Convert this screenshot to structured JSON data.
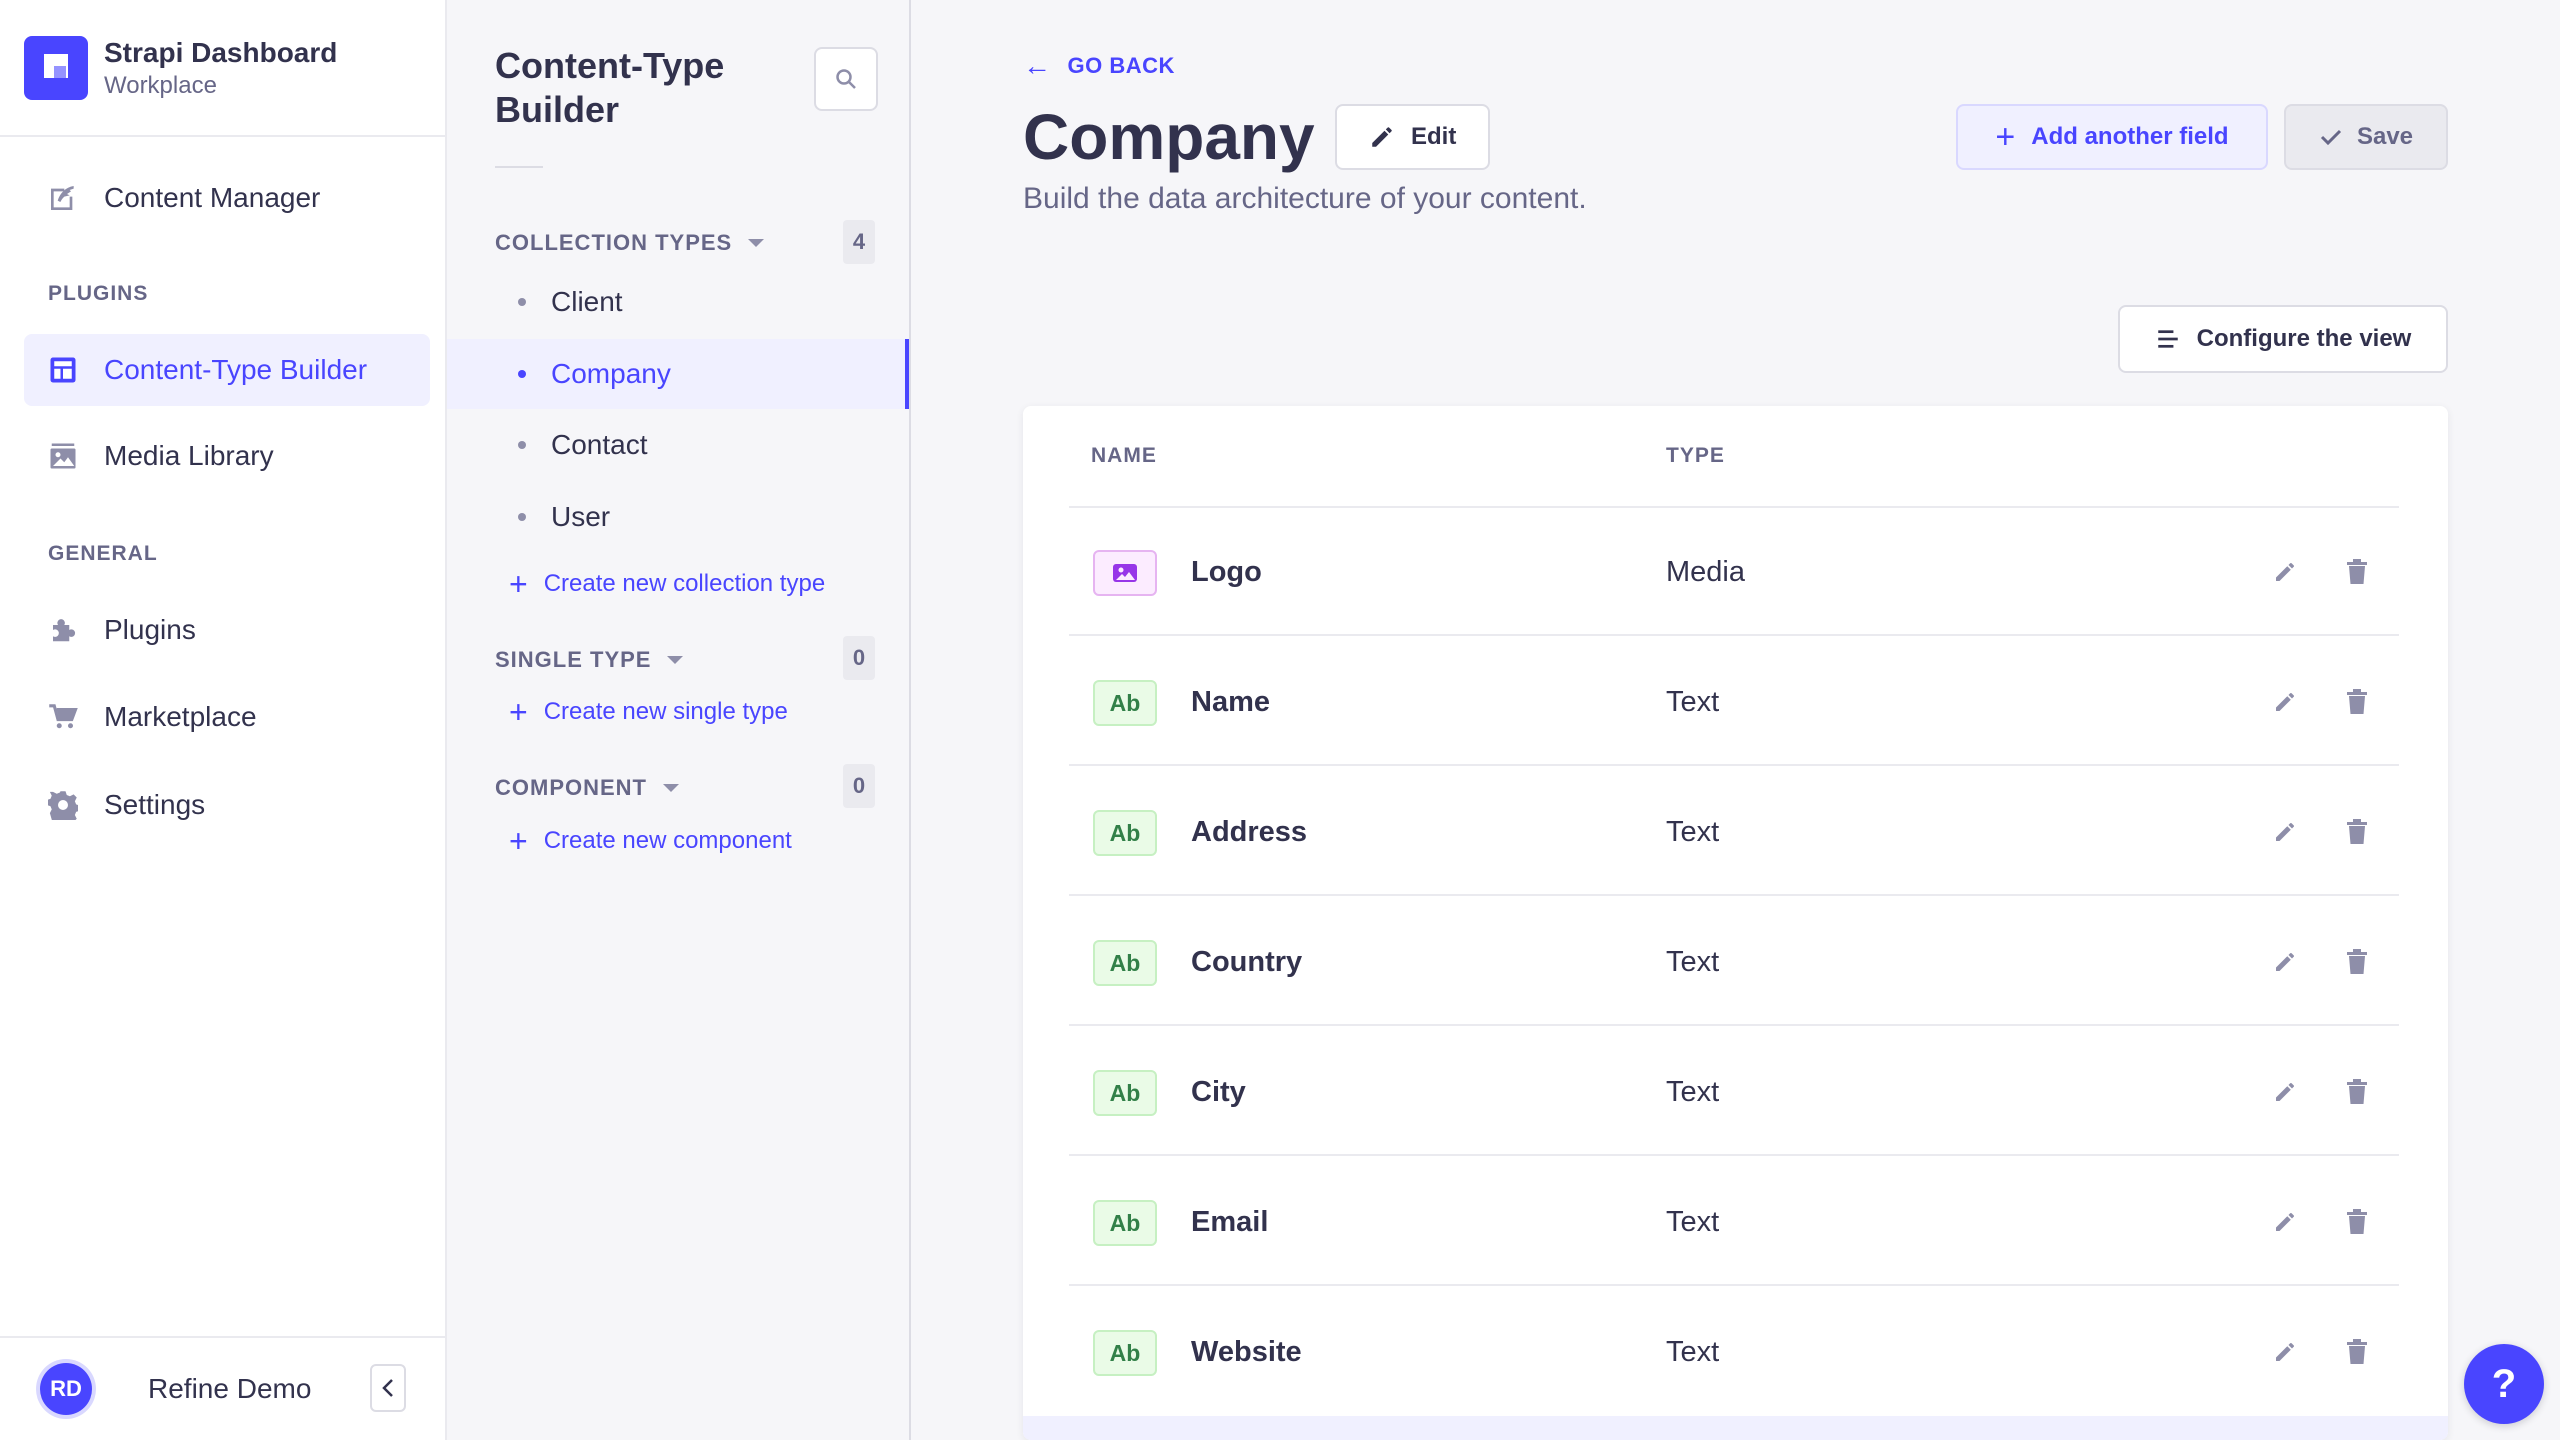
{
  "brand": {
    "title": "Strapi Dashboard",
    "subtitle": "Workplace"
  },
  "mainnav": {
    "content_manager": "Content Manager",
    "plugins_section": "PLUGINS",
    "content_type_builder": "Content-Type Builder",
    "media_library": "Media Library",
    "general_section": "GENERAL",
    "plugins": "Plugins",
    "marketplace": "Marketplace",
    "settings": "Settings"
  },
  "footer": {
    "initials": "RD",
    "name": "Refine Demo"
  },
  "subnav": {
    "title": "Content-Type Builder",
    "collection_types": {
      "label": "COLLECTION TYPES",
      "count": "4",
      "items": [
        "Client",
        "Company",
        "Contact",
        "User"
      ],
      "active": "Company",
      "create_label": "Create new collection type"
    },
    "single_type": {
      "label": "SINGLE TYPE",
      "count": "0",
      "create_label": "Create new single type"
    },
    "component": {
      "label": "COMPONENT",
      "count": "0",
      "create_label": "Create new component"
    }
  },
  "main": {
    "go_back": "GO BACK",
    "title": "Company",
    "edit_label": "Edit",
    "subtitle": "Build the data architecture of your content.",
    "add_field_label": "Add another field",
    "save_label": "Save",
    "configure_label": "Configure the view",
    "table": {
      "headers": {
        "name": "NAME",
        "type": "TYPE"
      },
      "rows": [
        {
          "badge": "media",
          "name": "Logo",
          "type": "Media"
        },
        {
          "badge": "Ab",
          "name": "Name",
          "type": "Text"
        },
        {
          "badge": "Ab",
          "name": "Address",
          "type": "Text"
        },
        {
          "badge": "Ab",
          "name": "Country",
          "type": "Text"
        },
        {
          "badge": "Ab",
          "name": "City",
          "type": "Text"
        },
        {
          "badge": "Ab",
          "name": "Email",
          "type": "Text"
        },
        {
          "badge": "Ab",
          "name": "Website",
          "type": "Text"
        }
      ]
    }
  },
  "help": {
    "label": "?"
  },
  "colors": {
    "primary": "#4945ff",
    "primary_light": "#f0f0ff",
    "text": "#32324d",
    "muted": "#666687",
    "success": "#328048",
    "media": "#9736e8"
  }
}
